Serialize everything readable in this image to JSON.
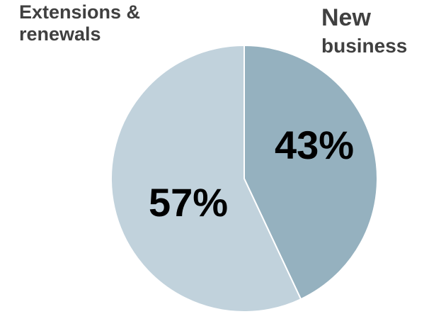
{
  "chart_data": {
    "type": "pie",
    "categories": [
      "New business",
      "Extensions & renewals"
    ],
    "values": [
      43,
      57
    ],
    "data_labels": [
      "43%",
      "57%"
    ],
    "category_labels": {
      "new_business_line1": "New",
      "new_business_line2": "business",
      "extensions_line1": "Extensions &",
      "extensions_line2": "renewals"
    },
    "colors": [
      "#95b1bf",
      "#c1d2dc"
    ],
    "start": "12 o'clock",
    "direction": "clockwise"
  }
}
